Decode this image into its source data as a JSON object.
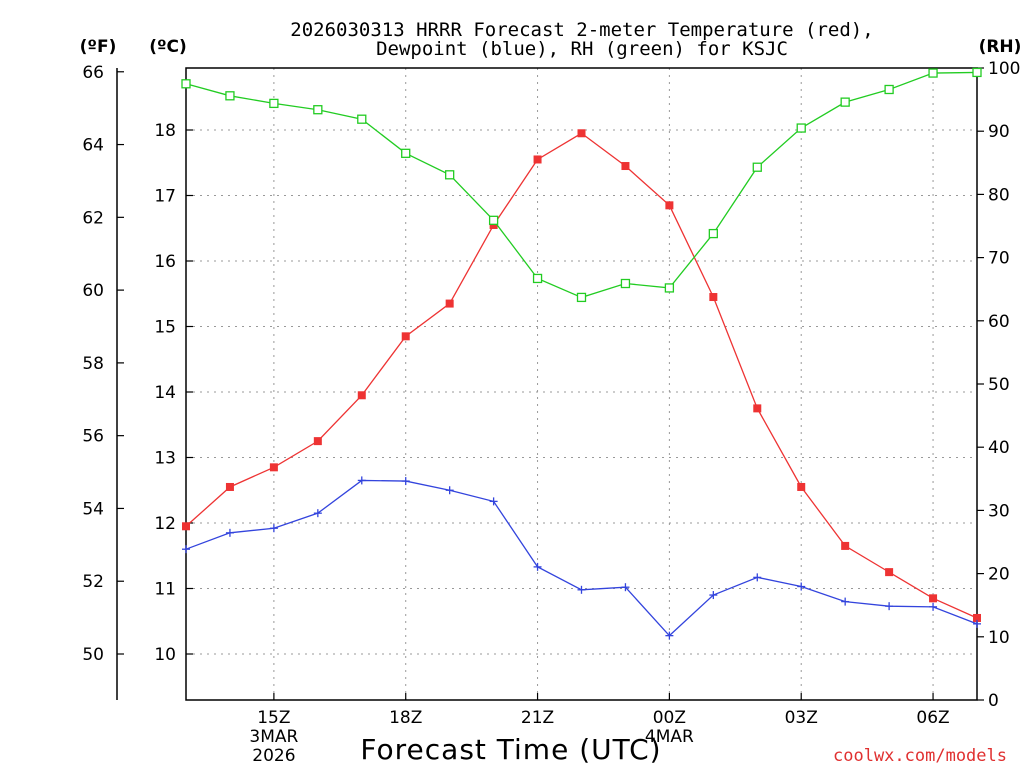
{
  "title_line1": "2026030313 HRRR Forecast 2-meter Temperature (red),",
  "title_line2": "Dewpoint (blue), RH (green) for KSJC",
  "unit_f": "(ºF)",
  "unit_c": "(ºC)",
  "unit_rh": "(RH)",
  "credit": "coolwx.com/models",
  "credit_color": "#e03030",
  "chart_data": {
    "type": "line",
    "title": "2026030313 HRRR Forecast 2-meter Temperature (red), Dewpoint (blue), RH (green) for KSJC",
    "xlabel": "Forecast Time (UTC)",
    "x_hours": [
      13,
      14,
      15,
      16,
      17,
      18,
      19,
      20,
      21,
      22,
      23,
      24,
      25,
      26,
      27,
      28,
      29,
      30,
      31
    ],
    "x_range": [
      13,
      31
    ],
    "x_ticks": [
      {
        "h": 15,
        "label": "15Z",
        "date1": "3MAR",
        "date2": "2026"
      },
      {
        "h": 18,
        "label": "18Z"
      },
      {
        "h": 21,
        "label": "21Z"
      },
      {
        "h": 24,
        "label": "00Z",
        "date1": "4MAR"
      },
      {
        "h": 27,
        "label": "03Z"
      },
      {
        "h": 30,
        "label": "06Z"
      }
    ],
    "ylim_c": [
      9.3,
      19.0
    ],
    "y_ticks_c": [
      "10",
      "11",
      "12",
      "13",
      "14",
      "15",
      "16",
      "17",
      "18"
    ],
    "y_ticks_f": [
      "50",
      "52",
      "54",
      "56",
      "58",
      "60",
      "62",
      "64",
      "66"
    ],
    "ylim_rh": [
      0,
      100
    ],
    "y_ticks_rh": [
      "0",
      "10",
      "20",
      "30",
      "40",
      "50",
      "60",
      "70",
      "80",
      "90",
      "100"
    ],
    "series": [
      {
        "name": "Temperature",
        "unit": "C",
        "color": "#ee3333",
        "marker": "filled-square",
        "values": [
          11.95,
          12.55,
          12.85,
          13.25,
          13.95,
          14.85,
          15.35,
          16.55,
          17.55,
          17.95,
          17.45,
          16.85,
          15.45,
          13.75,
          12.55,
          11.65,
          11.25,
          10.85,
          10.55
        ]
      },
      {
        "name": "Dewpoint",
        "unit": "C",
        "color": "#3344dd",
        "marker": "plus",
        "values": [
          11.6,
          11.85,
          11.92,
          12.15,
          12.65,
          12.64,
          12.5,
          12.33,
          11.33,
          10.98,
          11.02,
          10.28,
          10.9,
          11.17,
          11.03,
          10.8,
          10.73,
          10.72,
          10.46
        ]
      },
      {
        "name": "RH",
        "unit": "%",
        "color": "#22cc22",
        "marker": "open-square",
        "values": [
          97.5,
          95.6,
          94.4,
          93.4,
          91.9,
          86.5,
          83.1,
          75.9,
          66.7,
          63.7,
          65.9,
          65.2,
          73.8,
          84.3,
          90.5,
          94.6,
          96.6,
          99.2,
          99.3
        ]
      }
    ]
  }
}
